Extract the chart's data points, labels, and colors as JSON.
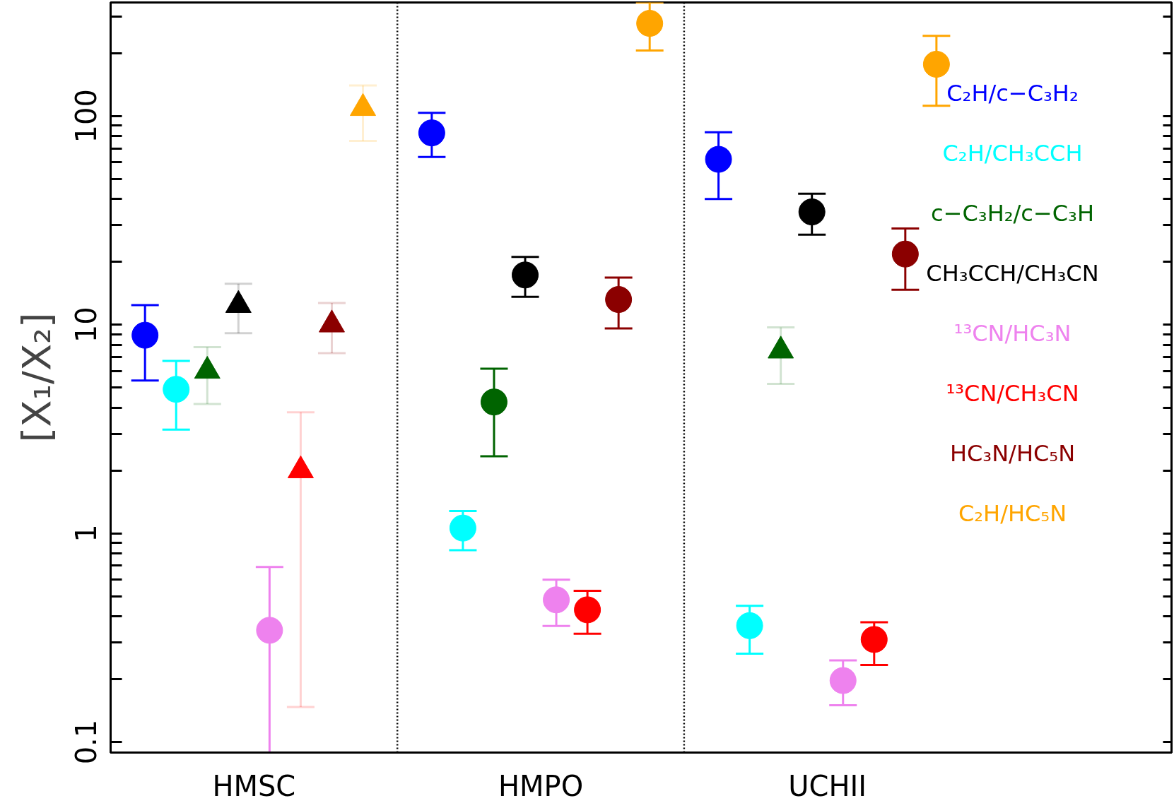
{
  "chart_data": {
    "type": "scatter",
    "ylabel": "[X₁/X₂]",
    "categories": [
      "HMSC",
      "HMPO",
      "UCHII"
    ],
    "ylim": [
      0.089,
      350
    ],
    "yticks": [
      0.1,
      {
        "value": 0.2,
        "label": null
      },
      {
        "value": 0.3,
        "label": null
      },
      {
        "value": 0.4,
        "label": null
      },
      {
        "value": 0.5,
        "label": null
      },
      {
        "value": 0.6,
        "label": null
      },
      {
        "value": 0.7,
        "label": null
      },
      {
        "value": 0.8,
        "label": null
      },
      {
        "value": 0.9,
        "label": null
      },
      1,
      {
        "value": 2,
        "label": null
      },
      {
        "value": 3,
        "label": null
      },
      {
        "value": 4,
        "label": null
      },
      {
        "value": 5,
        "label": null
      },
      {
        "value": 6,
        "label": null
      },
      {
        "value": 7,
        "label": null
      },
      {
        "value": 8,
        "label": null
      },
      {
        "value": 9,
        "label": null
      },
      10,
      {
        "value": 20,
        "label": null
      },
      {
        "value": 30,
        "label": null
      },
      {
        "value": 40,
        "label": null
      },
      {
        "value": 50,
        "label": null
      },
      {
        "value": 60,
        "label": null
      },
      {
        "value": 70,
        "label": null
      },
      {
        "value": 80,
        "label": null
      },
      {
        "value": 90,
        "label": null
      },
      100,
      {
        "value": 200,
        "label": null
      },
      {
        "value": 300,
        "label": null
      }
    ],
    "log": "y",
    "grid": false,
    "legend": "top right",
    "series": [
      {
        "name": "C₂H/c−C₃H₂",
        "color": "#0000ff",
        "marker": "circle",
        "values": [
          8.9,
          83,
          62
        ],
        "errors": [
          [
            5.4,
            12.4
          ],
          [
            63.6,
            103.5
          ],
          [
            40,
            83.6
          ]
        ]
      },
      {
        "name": "C₂H/CH₃CCH",
        "color": "#00ffff",
        "marker": "circle",
        "values": [
          4.9,
          1.06,
          0.361
        ],
        "errors": [
          [
            3.14,
            6.7
          ],
          [
            0.83,
            1.28
          ],
          [
            0.265,
            0.449
          ]
        ]
      },
      {
        "name": "c−C₃H₂/c−C₃H",
        "color": "#006400",
        "marker": "circle",
        "values": [
          null,
          4.26,
          null
        ],
        "errors": [
          null,
          [
            2.34,
            6.15
          ],
          null
        ]
      },
      {
        "name": "CH₃CCH/CH₃CN",
        "color": "#000000",
        "marker": "circle",
        "values": [
          null,
          17.3,
          34.7
        ],
        "errors": [
          null,
          [
            13.6,
            21.1
          ],
          [
            27,
            42.4
          ]
        ]
      },
      {
        "name": "¹³CN/HC₃N",
        "color": "#ee82ee",
        "marker": "circle",
        "values": [
          0.343,
          0.48,
          0.197
        ],
        "errors": [
          [
            0.089,
            0.69
          ],
          [
            0.36,
            0.6
          ],
          [
            0.15,
            0.246
          ]
        ]
      },
      {
        "name": "¹³CN/CH₃CN",
        "color": "#ff0000",
        "marker": "circle",
        "values": [
          null,
          0.43,
          0.31
        ],
        "errors": [
          null,
          [
            0.33,
            0.53
          ],
          [
            0.234,
            0.375
          ]
        ]
      },
      {
        "name": "HC₃N/HC₅N",
        "color": "#8b0000",
        "marker": "circle",
        "values": [
          null,
          13.2,
          21.8
        ],
        "errors": [
          null,
          [
            9.6,
            16.8
          ],
          [
            14.7,
            28.9
          ]
        ]
      },
      {
        "name": "C₂H/HC₅N",
        "color": "#ffa500",
        "marker": "circle",
        "values": [
          null,
          278,
          177
        ],
        "errors": [
          null,
          [
            206,
            350
          ],
          [
            112,
            242
          ]
        ]
      },
      {
        "color": "#006400",
        "marker": "triangle",
        "values": [
          6.0,
          null,
          7.5
        ],
        "errors": [
          [
            4.17,
            7.8
          ],
          null,
          [
            5.2,
            9.7
          ]
        ]
      },
      {
        "color": "#000000",
        "marker": "triangle",
        "values": [
          12.4,
          null,
          null
        ],
        "errors": [
          [
            9.1,
            15.7
          ],
          null,
          null
        ]
      },
      {
        "color": "#ff0000",
        "marker": "triangle",
        "values": [
          2.0,
          null,
          null
        ],
        "errors": [
          [
            0.147,
            3.8
          ],
          null,
          null
        ]
      },
      {
        "color": "#8b0000",
        "marker": "triangle",
        "values": [
          10.0,
          null,
          null
        ],
        "errors": [
          [
            7.3,
            12.7
          ],
          null,
          null
        ]
      },
      {
        "color": "#ffa500",
        "marker": "triangle",
        "values": [
          109,
          null,
          null
        ],
        "errors": [
          [
            76,
            140
          ],
          null,
          null
        ]
      }
    ]
  }
}
